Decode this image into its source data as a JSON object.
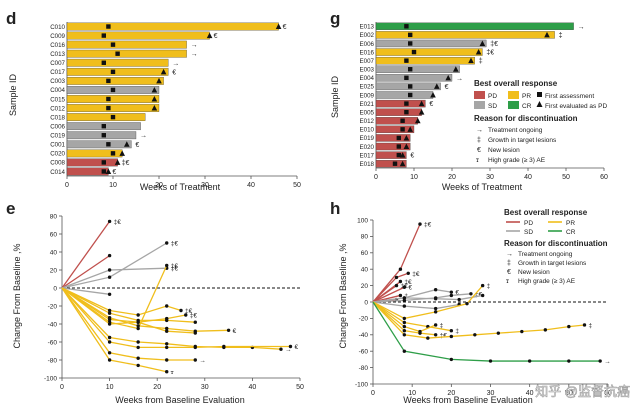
{
  "colors": {
    "PD": "#c0504d",
    "SD": "#a6a6a6",
    "PR": "#f0be1c",
    "CR": "#2e9e48",
    "axis": "#555555",
    "text": "#222222"
  },
  "watermark": "知乎 @监督抗癌",
  "panels": {
    "d": {
      "letter": "d",
      "xlabel": "Weeks of Treatment",
      "ylabel": "Sample ID"
    },
    "g": {
      "letter": "g",
      "xlabel": "Weeks of Treatment",
      "ylabel": "Sample ID"
    },
    "e": {
      "letter": "e",
      "xlabel": "Weeks from Baseline Evaluation",
      "ylabel": "Change From Baseline ,%"
    },
    "h": {
      "letter": "h",
      "xlabel": "Weeks from Baseline Evaluation",
      "ylabel": "Change From Baseline ,%"
    }
  },
  "legend_g": {
    "title1": "Best overall response",
    "PD": "PD",
    "SD": "SD",
    "PR": "PR",
    "CR": "CR",
    "first_assessment": "First assessment",
    "first_pd": "First evaluated as PD",
    "title2": "Reason for discontinuation",
    "ongoing": "Treatment ongoing",
    "growth": "Growth in target lesions",
    "new_lesion": "New lesion",
    "high_ae": "High grade (≥ 3) AE"
  },
  "legend_h": {
    "title1": "Best overall response",
    "PD": "PD",
    "PR": "PR",
    "SD": "SD",
    "CR": "CR",
    "title2": "Reason for discontinuation",
    "ongoing": "Treatment ongoing",
    "growth": "Growth in target lesions",
    "new_lesion": "New lesion",
    "high_ae": "High grade (≥ 3) AE"
  },
  "chart_data": [
    {
      "id": "d",
      "type": "bar",
      "orientation": "horizontal",
      "title": "",
      "xlabel": "Weeks of Treatment",
      "ylabel": "Sample ID",
      "xlim": [
        0,
        50
      ],
      "xticks": [
        0,
        10,
        20,
        30,
        40,
        50
      ],
      "categories": [
        "C010",
        "C009",
        "C016",
        "C013",
        "C007",
        "C017",
        "C003",
        "C004",
        "C015",
        "C012",
        "C018",
        "C006",
        "C019",
        "C001",
        "C020",
        "C008",
        "C014"
      ],
      "values": [
        46,
        31,
        26,
        26,
        22,
        22,
        21,
        20,
        20,
        20,
        17,
        16,
        15,
        14,
        12,
        11,
        9
      ],
      "response": [
        "PR",
        "PR",
        "PR",
        "PR",
        "PR",
        "PR",
        "PR",
        "SD",
        "PR",
        "PR",
        "PR",
        "SD",
        "SD",
        "SD",
        "PR",
        "PD",
        "PD"
      ],
      "first_assessment": [
        9,
        8,
        10,
        11,
        8,
        10,
        9,
        10,
        9,
        9,
        10,
        8,
        8,
        9,
        10,
        8,
        8
      ],
      "first_pd": [
        46,
        31,
        null,
        null,
        null,
        21,
        20,
        19,
        19,
        19,
        null,
        null,
        null,
        13,
        12,
        11,
        9
      ],
      "end_label": [
        "€",
        "€",
        "→",
        "→",
        "→",
        "€",
        "",
        "",
        "",
        "",
        "",
        "",
        "→",
        "€",
        "",
        "‡€",
        "€"
      ]
    },
    {
      "id": "g",
      "type": "bar",
      "orientation": "horizontal",
      "title": "",
      "xlabel": "Weeks of Treatment",
      "ylabel": "Sample ID",
      "xlim": [
        0,
        60
      ],
      "xticks": [
        0,
        10,
        20,
        30,
        40,
        50,
        60
      ],
      "categories": [
        "E013",
        "E002",
        "E006",
        "E016",
        "E007",
        "E003",
        "E004",
        "E025",
        "E009",
        "E021",
        "E005",
        "E012",
        "E010",
        "E019",
        "E020",
        "E017",
        "E018"
      ],
      "values": [
        52,
        47,
        29,
        28,
        26,
        22,
        20,
        17,
        15,
        13,
        12,
        11,
        10,
        9,
        9,
        8,
        8
      ],
      "response": [
        "CR",
        "PR",
        "SD",
        "PR",
        "PR",
        "SD",
        "SD",
        "SD",
        "SD",
        "PD",
        "PD",
        "PD",
        "PD",
        "PD",
        "PD",
        "PD",
        "PD"
      ],
      "first_assessment": [
        8,
        9,
        9,
        10,
        8,
        9,
        8,
        9,
        9,
        8,
        8,
        7,
        7,
        6,
        6,
        6,
        5
      ],
      "first_pd": [
        null,
        45,
        28,
        27,
        25,
        21,
        19,
        16,
        15,
        12,
        12,
        11,
        9,
        8,
        8,
        7,
        7
      ],
      "end_label": [
        "→",
        "‡",
        "‡€",
        "‡€",
        "‡",
        "",
        "→",
        "€",
        "",
        "€",
        "",
        "",
        "",
        "",
        "",
        "€",
        ""
      ]
    },
    {
      "id": "e",
      "type": "line",
      "title": "",
      "xlabel": "Weeks from Baseline Evaluation",
      "ylabel": "Change From Baseline ,%",
      "xlim": [
        0,
        50
      ],
      "ylim": [
        -100,
        80
      ],
      "xticks": [
        0,
        10,
        20,
        30,
        40,
        50
      ],
      "yticks": [
        80,
        60,
        40,
        20,
        0,
        -20,
        -40,
        -60,
        -80,
        -100
      ],
      "baseline": 0,
      "series": [
        {
          "name": "PD",
          "response": "PD",
          "x": [
            0,
            10
          ],
          "y": [
            0,
            74
          ],
          "end_label": "‡€"
        },
        {
          "name": "PD",
          "response": "PD",
          "x": [
            0,
            10
          ],
          "y": [
            0,
            36
          ],
          "end_label": ""
        },
        {
          "name": "SD",
          "response": "SD",
          "x": [
            0,
            10,
            22
          ],
          "y": [
            0,
            12,
            50
          ],
          "end_label": "‡€"
        },
        {
          "name": "SD",
          "response": "SD",
          "x": [
            0,
            10,
            22
          ],
          "y": [
            0,
            20,
            22
          ],
          "end_label": "‡€"
        },
        {
          "name": "SD",
          "response": "SD",
          "x": [
            0,
            10
          ],
          "y": [
            0,
            -7
          ],
          "end_label": ""
        },
        {
          "name": "PR",
          "response": "PR",
          "x": [
            0,
            10,
            16,
            22
          ],
          "y": [
            0,
            -38,
            -45,
            25
          ],
          "end_label": "‡€"
        },
        {
          "name": "PR",
          "response": "PR",
          "x": [
            0,
            10,
            16,
            22,
            25
          ],
          "y": [
            0,
            -25,
            -30,
            -20,
            -25
          ],
          "end_label": "‡€"
        },
        {
          "name": "PR",
          "response": "PR",
          "x": [
            0,
            10,
            16,
            22,
            26
          ],
          "y": [
            0,
            -35,
            -38,
            -34,
            -30
          ],
          "end_label": "‡€"
        },
        {
          "name": "PR",
          "response": "PR",
          "x": [
            0,
            10,
            16,
            22,
            28
          ],
          "y": [
            0,
            -28,
            -36,
            -36,
            -38
          ],
          "end_label": ""
        },
        {
          "name": "PR",
          "response": "PR",
          "x": [
            0,
            10,
            16,
            22,
            28,
            35
          ],
          "y": [
            0,
            -33,
            -42,
            -45,
            -48,
            -47
          ],
          "end_label": "€"
        },
        {
          "name": "PR",
          "response": "PR",
          "x": [
            0,
            10,
            16,
            22,
            28
          ],
          "y": [
            0,
            -40,
            -38,
            -48,
            -50
          ],
          "end_label": ""
        },
        {
          "name": "PR",
          "response": "PR",
          "x": [
            0,
            10,
            16,
            22,
            28,
            34,
            40,
            46
          ],
          "y": [
            0,
            -55,
            -60,
            -62,
            -65,
            -66,
            -66,
            -68
          ],
          "end_label": "→"
        },
        {
          "name": "PR",
          "response": "PR",
          "x": [
            0,
            10,
            16,
            22,
            28,
            34,
            48
          ],
          "y": [
            0,
            -60,
            -66,
            -66,
            -66,
            -65,
            -65
          ],
          "end_label": "€"
        },
        {
          "name": "PR",
          "response": "PR",
          "x": [
            0,
            10,
            16,
            22,
            28
          ],
          "y": [
            0,
            -72,
            -78,
            -80,
            -80
          ],
          "end_label": "→"
        },
        {
          "name": "PR",
          "response": "PR",
          "x": [
            0,
            10,
            16,
            22
          ],
          "y": [
            0,
            -80,
            -86,
            -93
          ],
          "end_label": "ꭲ"
        }
      ]
    },
    {
      "id": "h",
      "type": "line",
      "title": "",
      "xlabel": "Weeks from Baseline Evaluation",
      "ylabel": "Change From Baseline ,%",
      "xlim": [
        0,
        60
      ],
      "ylim": [
        -100,
        100
      ],
      "xticks": [
        0,
        10,
        20,
        30,
        40,
        50,
        60
      ],
      "yticks": [
        100,
        80,
        60,
        40,
        20,
        0,
        -20,
        -40,
        -60,
        -80,
        -100
      ],
      "baseline": 0,
      "series": [
        {
          "name": "PD",
          "response": "PD",
          "x": [
            0,
            7,
            12
          ],
          "y": [
            0,
            40,
            95
          ],
          "end_label": "‡€"
        },
        {
          "name": "PD",
          "response": "PD",
          "x": [
            0,
            6,
            9
          ],
          "y": [
            0,
            30,
            35
          ],
          "end_label": "‡€"
        },
        {
          "name": "PD",
          "response": "PD",
          "x": [
            0,
            7
          ],
          "y": [
            0,
            25
          ],
          "end_label": "‡€"
        },
        {
          "name": "PD",
          "response": "PD",
          "x": [
            0,
            6
          ],
          "y": [
            0,
            20
          ],
          "end_label": "‡€"
        },
        {
          "name": "PD",
          "response": "PD",
          "x": [
            0,
            8
          ],
          "y": [
            0,
            18
          ],
          "end_label": "€"
        },
        {
          "name": "PD",
          "response": "PD",
          "x": [
            0,
            7
          ],
          "y": [
            0,
            8
          ],
          "end_label": "‡"
        },
        {
          "name": "PD",
          "response": "PD",
          "x": [
            0,
            6
          ],
          "y": [
            0,
            3
          ],
          "end_label": ""
        },
        {
          "name": "SD",
          "response": "SD",
          "x": [
            0,
            8,
            16,
            20
          ],
          "y": [
            0,
            5,
            15,
            12
          ],
          "end_label": "€"
        },
        {
          "name": "SD",
          "response": "SD",
          "x": [
            0,
            8,
            16,
            20,
            25
          ],
          "y": [
            0,
            2,
            5,
            8,
            10
          ],
          "end_label": "‡€"
        },
        {
          "name": "SD",
          "response": "SD",
          "x": [
            0,
            8,
            16,
            22,
            28
          ],
          "y": [
            0,
            5,
            4,
            3,
            8
          ],
          "end_label": ""
        },
        {
          "name": "SD",
          "response": "SD",
          "x": [
            0,
            8,
            16,
            22
          ],
          "y": [
            0,
            -5,
            -8,
            -3
          ],
          "end_label": ""
        },
        {
          "name": "PR",
          "response": "PR",
          "x": [
            0,
            8,
            16,
            24,
            28
          ],
          "y": [
            0,
            -20,
            -12,
            -2,
            20
          ],
          "end_label": "‡"
        },
        {
          "name": "PR",
          "response": "PR",
          "x": [
            0,
            8,
            14,
            20
          ],
          "y": [
            0,
            -25,
            -30,
            -35
          ],
          "end_label": "‡"
        },
        {
          "name": "PR",
          "response": "PR",
          "x": [
            0,
            8,
            12,
            16
          ],
          "y": [
            0,
            -30,
            -36,
            -28
          ],
          "end_label": "‡"
        },
        {
          "name": "PR",
          "response": "PR",
          "x": [
            0,
            8,
            12,
            16
          ],
          "y": [
            0,
            -35,
            -38,
            -40
          ],
          "end_label": "‡€"
        },
        {
          "name": "PR",
          "response": "PR",
          "x": [
            0,
            8,
            14,
            20,
            26,
            32,
            38,
            44,
            50,
            54
          ],
          "y": [
            0,
            -40,
            -44,
            -42,
            -40,
            -38,
            -36,
            -34,
            -30,
            -28
          ],
          "end_label": "‡"
        },
        {
          "name": "CR",
          "response": "CR",
          "x": [
            0,
            8,
            20,
            30,
            40,
            50,
            58
          ],
          "y": [
            0,
            -60,
            -70,
            -72,
            -72,
            -72,
            -72
          ],
          "end_label": "→"
        }
      ]
    }
  ]
}
